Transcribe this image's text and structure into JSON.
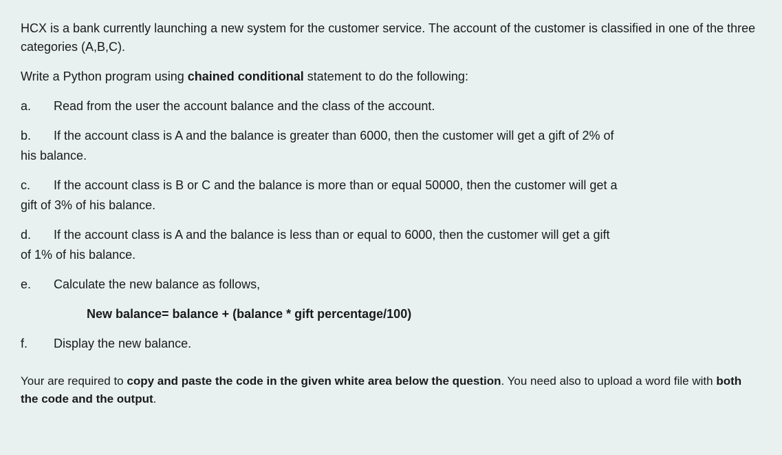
{
  "intro": {
    "p1": "HCX is a bank currently launching a new system for the customer service. The account of the customer is classified in one of the three categories (A,B,C).",
    "p2_pre": "Write a Python program using ",
    "p2_bold": "chained conditional",
    "p2_post": " statement to do the following:"
  },
  "items": {
    "a": {
      "marker": "a.",
      "text": "Read from the user the account balance and the class of the account."
    },
    "b": {
      "marker": "b.",
      "line1": "If the account class is A and the balance is greater than 6000, then the customer will get a gift of 2% of",
      "line2": "his balance."
    },
    "c": {
      "marker": "c.",
      "line1": "If the account class is B or C and the balance is more than or equal 50000, then the customer will get a",
      "line2": "gift of 3% of his balance."
    },
    "d": {
      "marker": "d.",
      "line1": "If the account class is A and the balance is less than or equal to 6000, then the customer will get a gift",
      "line2": "of 1% of his balance."
    },
    "e": {
      "marker": "e.",
      "text": "Calculate the new balance as follows,"
    },
    "formula": "New balance= balance + (balance * gift percentage/100)",
    "f": {
      "marker": "f.",
      "text": "Display the new balance."
    }
  },
  "footer": {
    "pre1": " Your are required to ",
    "bold1": "copy and paste the code in the given white area below the question",
    "mid": ". You need also to upload  a word file with ",
    "bold2": "both the code and the output",
    "post": "."
  },
  "styles": {
    "background_color": "#e8f0f0",
    "text_color": "#1a1a1a",
    "font_family": "Segoe UI",
    "font_size_body": 18,
    "font_size_footer": 17,
    "line_height": 1.5,
    "bold_weight": 700
  }
}
